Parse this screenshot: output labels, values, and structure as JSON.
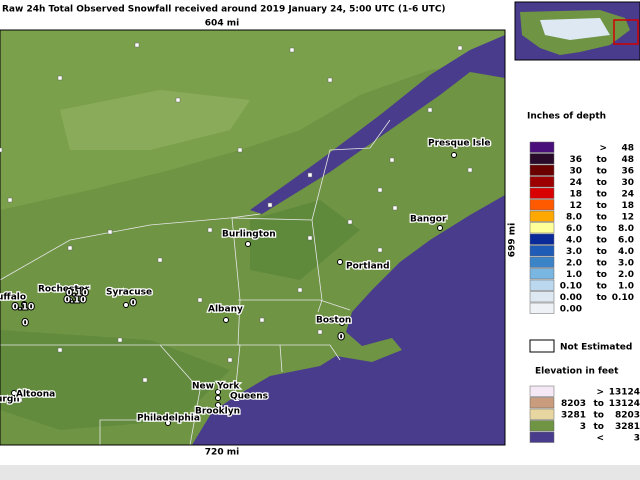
{
  "header": {
    "title": "Raw 24h Total Observed Snowfall received around 2019 January 24, 5:00 UTC (1-6 UTC)"
  },
  "map": {
    "scale_top": "604 mi",
    "scale_bottom": "720 mi",
    "scale_side": "699 mi",
    "cities": [
      {
        "label": "Presque Isle"
      },
      {
        "label": "Bangor"
      },
      {
        "label": "Burlington"
      },
      {
        "label": "Portland"
      },
      {
        "label": "Rochester"
      },
      {
        "label": "Syracuse"
      },
      {
        "label": "uffalo"
      },
      {
        "label": "Albany"
      },
      {
        "label": "Boston"
      },
      {
        "label": "urgh"
      },
      {
        "label": "Altoona"
      },
      {
        "label": "New York"
      },
      {
        "label": "Queens"
      },
      {
        "label": "Brooklyn"
      },
      {
        "label": "Philadelphia"
      }
    ],
    "values": [
      "0.10",
      "0.10",
      "0.10",
      "0",
      "0",
      "0"
    ]
  },
  "legend": {
    "title": "Inches of depth",
    "rows": [
      {
        "sep": ">",
        "high": "48",
        "color": "#4a0f7a"
      },
      {
        "low": "36",
        "sep": "to",
        "high": "48",
        "color": "#2a0a2a"
      },
      {
        "low": "30",
        "sep": "to",
        "high": "36",
        "color": "#6a0000"
      },
      {
        "low": "24",
        "sep": "to",
        "high": "30",
        "color": "#9c0000"
      },
      {
        "low": "18",
        "sep": "to",
        "high": "24",
        "color": "#d80000"
      },
      {
        "low": "12",
        "sep": "to",
        "high": "18",
        "color": "#ff5a00"
      },
      {
        "low": "8.0",
        "sep": "to",
        "high": "12",
        "color": "#ffa800"
      },
      {
        "low": "6.0",
        "sep": "to",
        "high": "8.0",
        "color": "#ffff99"
      },
      {
        "low": "4.0",
        "sep": "to",
        "high": "6.0",
        "color": "#0a2a9a"
      },
      {
        "low": "3.0",
        "sep": "to",
        "high": "4.0",
        "color": "#1f5cb8"
      },
      {
        "low": "2.0",
        "sep": "to",
        "high": "3.0",
        "color": "#3c84c8"
      },
      {
        "low": "1.0",
        "sep": "to",
        "high": "2.0",
        "color": "#7ab6e2"
      },
      {
        "low": "0.10",
        "sep": "to",
        "high": "1.0",
        "color": "#bcd8ee"
      },
      {
        "low": "0.00",
        "sep": "to",
        "high": "0.10",
        "color": "#dde8f2"
      },
      {
        "low": "0.00",
        "color": "#eef2f6"
      }
    ],
    "not_estimated": "Not Estimated",
    "elevation_title": "Elevation in feet",
    "elevation_rows": [
      {
        "sep": ">",
        "high": "13124",
        "color": "#f4e8f4"
      },
      {
        "low": "8203",
        "sep": "to",
        "high": "13124",
        "color": "#c89c7c"
      },
      {
        "low": "3281",
        "sep": "to",
        "high": "8203",
        "color": "#e8d6a0"
      },
      {
        "low": "3",
        "sep": "to",
        "high": "3281",
        "color": "#6e9444"
      },
      {
        "sep": "<",
        "high": "3",
        "color": "#4a3c8c"
      }
    ]
  }
}
